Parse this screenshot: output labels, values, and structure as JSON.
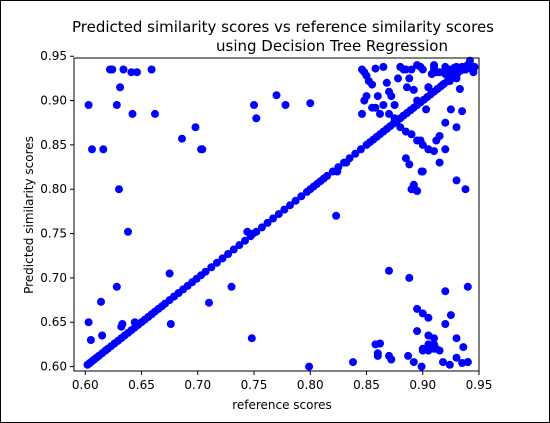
{
  "chart_data": {
    "type": "scatter",
    "title_line1": "Predicted similarity scores vs reference similarity scores",
    "title_line2": "using Decision Tree Regression",
    "xlabel": "reference scores",
    "ylabel": "Predicted similarity scores",
    "xlim": [
      0.59,
      0.95
    ],
    "ylim": [
      0.595,
      0.948
    ],
    "xticks": [
      0.6,
      0.65,
      0.7,
      0.75,
      0.8,
      0.85,
      0.9,
      0.95
    ],
    "xtick_labels": [
      "0.60",
      "0.65",
      "0.70",
      "0.75",
      "0.80",
      "0.85",
      "0.90",
      "0.95"
    ],
    "yticks": [
      0.6,
      0.65,
      0.7,
      0.75,
      0.8,
      0.85,
      0.9,
      0.95
    ],
    "ytick_labels": [
      "0.60",
      "0.65",
      "0.70",
      "0.75",
      "0.80",
      "0.85",
      "0.90",
      "0.95"
    ],
    "grid": false,
    "marker_color": "#0000ff",
    "series": [
      {
        "x": [
          0.602,
          0.604,
          0.606,
          0.608,
          0.61,
          0.612,
          0.615,
          0.618,
          0.62,
          0.623,
          0.626,
          0.629,
          0.632,
          0.635,
          0.638,
          0.641,
          0.644,
          0.647,
          0.65,
          0.653,
          0.656,
          0.659,
          0.662,
          0.665,
          0.668,
          0.671,
          0.675,
          0.679,
          0.683,
          0.687,
          0.691,
          0.695,
          0.699,
          0.703,
          0.707,
          0.712,
          0.717,
          0.722,
          0.727,
          0.732,
          0.737,
          0.742,
          0.747,
          0.752,
          0.757,
          0.762,
          0.767,
          0.772,
          0.777,
          0.782,
          0.787,
          0.792,
          0.797,
          0.8,
          0.803,
          0.806,
          0.809,
          0.812,
          0.815,
          0.82,
          0.825,
          0.83,
          0.835,
          0.84,
          0.845,
          0.85,
          0.853,
          0.856,
          0.859,
          0.862,
          0.865,
          0.868,
          0.871,
          0.874,
          0.877,
          0.88,
          0.883,
          0.886,
          0.889,
          0.892,
          0.895,
          0.898,
          0.901,
          0.904,
          0.907,
          0.91,
          0.913,
          0.916,
          0.919,
          0.922,
          0.925,
          0.928,
          0.931,
          0.934,
          0.937,
          0.94,
          0.603,
          0.603,
          0.616,
          0.622,
          0.624,
          0.628,
          0.631,
          0.634,
          0.641,
          0.646,
          0.642,
          0.614,
          0.605,
          0.606,
          0.63,
          0.638,
          0.644,
          0.659,
          0.675,
          0.686,
          0.703,
          0.744,
          0.748,
          0.75,
          0.752,
          0.77,
          0.778,
          0.8,
          0.615,
          0.632,
          0.633,
          0.628,
          0.662,
          0.676,
          0.698,
          0.704,
          0.71,
          0.73,
          0.749,
          0.823,
          0.799,
          0.824,
          0.832,
          0.838,
          0.846,
          0.848,
          0.85,
          0.852,
          0.855,
          0.858,
          0.858,
          0.862,
          0.865,
          0.868,
          0.87,
          0.872,
          0.875,
          0.878,
          0.88,
          0.883,
          0.886,
          0.888,
          0.89,
          0.892,
          0.895,
          0.898,
          0.9,
          0.905,
          0.91,
          0.915,
          0.92,
          0.925,
          0.93,
          0.935,
          0.846,
          0.848,
          0.85,
          0.855,
          0.86,
          0.865,
          0.87,
          0.875,
          0.88,
          0.885,
          0.89,
          0.895,
          0.9,
          0.905,
          0.91,
          0.915,
          0.92,
          0.925,
          0.93,
          0.935,
          0.938,
          0.94,
          0.942,
          0.944,
          0.946,
          0.86,
          0.87,
          0.872,
          0.888,
          0.895,
          0.9,
          0.905,
          0.91,
          0.92,
          0.925,
          0.93,
          0.935,
          0.94,
          0.892,
          0.895,
          0.9,
          0.905,
          0.912,
          0.918,
          0.924,
          0.93,
          0.936,
          0.94,
          0.89,
          0.893,
          0.899,
          0.905,
          0.912,
          0.915,
          0.92,
          0.93,
          0.938,
          0.94,
          0.885,
          0.895,
          0.91,
          0.92,
          0.93,
          0.94,
          0.945,
          0.862,
          0.858,
          0.86,
          0.87,
          0.885,
          0.888,
          0.892,
          0.895,
          0.9,
          0.898,
          0.903,
          0.905,
          0.908,
          0.91,
          0.912,
          0.918,
          0.922,
          0.924,
          0.926,
          0.928,
          0.93,
          0.933,
          0.935,
          0.938,
          0.94,
          0.942,
          0.945,
          0.899,
          0.887,
          0.9,
          0.905,
          0.91,
          0.905,
          0.915,
          0.91,
          0.92
        ],
        "y": [
          0.602,
          0.604,
          0.606,
          0.608,
          0.61,
          0.612,
          0.615,
          0.618,
          0.62,
          0.623,
          0.626,
          0.629,
          0.632,
          0.635,
          0.638,
          0.641,
          0.644,
          0.647,
          0.65,
          0.653,
          0.656,
          0.659,
          0.662,
          0.665,
          0.668,
          0.671,
          0.675,
          0.679,
          0.683,
          0.687,
          0.691,
          0.695,
          0.699,
          0.703,
          0.707,
          0.712,
          0.717,
          0.722,
          0.727,
          0.732,
          0.737,
          0.742,
          0.747,
          0.752,
          0.757,
          0.762,
          0.767,
          0.772,
          0.777,
          0.782,
          0.787,
          0.792,
          0.797,
          0.8,
          0.803,
          0.806,
          0.809,
          0.812,
          0.815,
          0.82,
          0.825,
          0.83,
          0.835,
          0.84,
          0.845,
          0.85,
          0.853,
          0.856,
          0.859,
          0.862,
          0.865,
          0.868,
          0.871,
          0.874,
          0.877,
          0.88,
          0.883,
          0.886,
          0.889,
          0.892,
          0.895,
          0.898,
          0.901,
          0.904,
          0.907,
          0.91,
          0.913,
          0.916,
          0.919,
          0.922,
          0.925,
          0.928,
          0.931,
          0.934,
          0.937,
          0.94,
          0.65,
          0.895,
          0.845,
          0.935,
          0.935,
          0.895,
          0.915,
          0.935,
          0.932,
          0.932,
          0.885,
          0.673,
          0.63,
          0.845,
          0.8,
          0.752,
          0.65,
          0.935,
          0.705,
          0.857,
          0.845,
          0.752,
          0.632,
          0.895,
          0.88,
          0.906,
          0.895,
          0.897,
          0.635,
          0.645,
          0.648,
          0.69,
          0.885,
          0.648,
          0.87,
          0.845,
          0.672,
          0.69,
          0.75,
          0.77,
          0.6,
          0.82,
          0.83,
          0.605,
          0.935,
          0.932,
          0.928,
          0.922,
          0.918,
          0.936,
          0.892,
          0.885,
          0.938,
          0.92,
          0.91,
          0.905,
          0.895,
          0.925,
          0.938,
          0.935,
          0.915,
          0.925,
          0.935,
          0.912,
          0.9,
          0.938,
          0.935,
          0.915,
          0.938,
          0.932,
          0.938,
          0.935,
          0.938,
          0.938,
          0.885,
          0.9,
          0.905,
          0.892,
          0.905,
          0.895,
          0.885,
          0.88,
          0.87,
          0.865,
          0.862,
          0.855,
          0.85,
          0.845,
          0.843,
          0.86,
          0.875,
          0.89,
          0.87,
          0.888,
          0.935,
          0.94,
          0.945,
          0.935,
          0.938,
          0.615,
          0.708,
          0.608,
          0.7,
          0.665,
          0.66,
          0.625,
          0.632,
          0.648,
          0.658,
          0.61,
          0.604,
          0.69,
          0.605,
          0.64,
          0.618,
          0.635,
          0.62,
          0.605,
          0.602,
          0.632,
          0.622,
          0.605,
          0.8,
          0.8,
          0.82,
          0.845,
          0.855,
          0.83,
          0.845,
          0.81,
          0.8,
          0.605,
          0.935,
          0.94,
          0.935,
          0.93,
          0.935,
          0.94,
          0.932,
          0.626,
          0.625,
          0.612,
          0.612,
          0.835,
          0.828,
          0.805,
          0.798,
          0.82,
          0.855,
          0.89,
          0.915,
          0.93,
          0.94,
          0.932,
          0.918,
          0.935,
          0.922,
          0.93,
          0.937,
          0.925,
          0.913,
          0.938,
          0.935,
          0.94,
          0.937,
          0.935,
          0.6,
          0.612,
          0.62,
          0.618,
          0.625,
          0.655,
          0.618,
          0.62,
          0.685
        ]
      }
    ]
  }
}
